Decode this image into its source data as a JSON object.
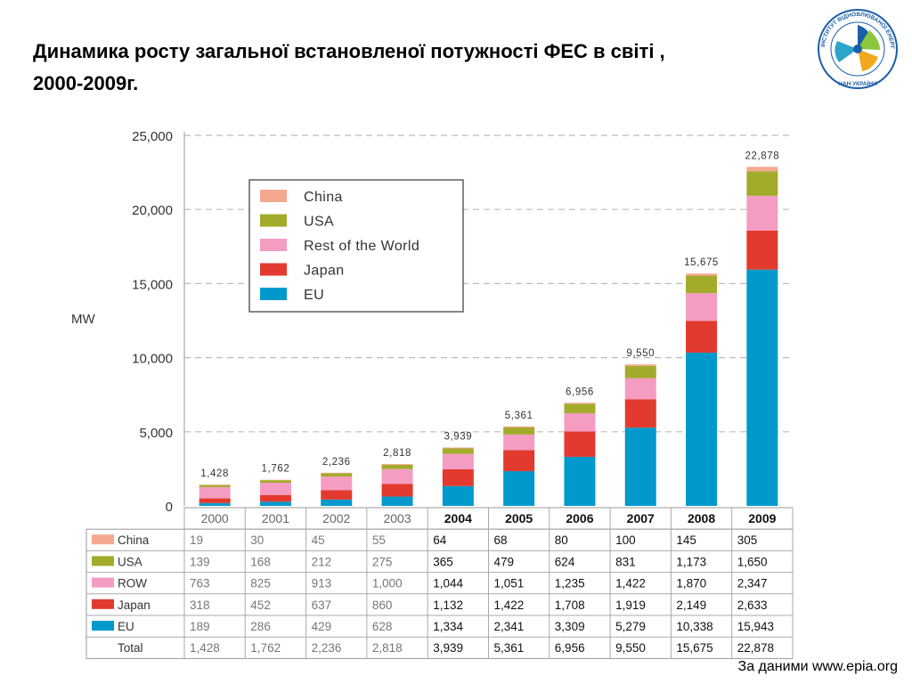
{
  "slide": {
    "title": "Динамика росту загальної встановленої потужності ФЕС  в світі , 2000-2009г.",
    "source": "За даними www.epia.org",
    "logo": {
      "icon": "institute-logo-icon",
      "arc_text": "ІНСТИТУТ ВІДНОВЛЮВАНОЇ ЕНЕРГЕТИКИ",
      "bottom_text": "НАН УКРАЇНИ"
    }
  },
  "colors": {
    "China": "#f4a98f",
    "USA": "#a2ab2a",
    "ROW": "#f59cc2",
    "Japan": "#e23a2e",
    "EU": "#0099cc"
  },
  "chart_data": {
    "type": "bar",
    "stacked": true,
    "categories": [
      "2000",
      "2001",
      "2002",
      "2003",
      "2004",
      "2005",
      "2006",
      "2007",
      "2008",
      "2009"
    ],
    "series": [
      {
        "name": "EU",
        "key": "EU",
        "values": [
          189,
          286,
          429,
          628,
          1334,
          2341,
          3309,
          5279,
          10338,
          15943
        ],
        "labels": [
          "189",
          "286",
          "429",
          "628",
          "1,334",
          "2,341",
          "3,309",
          "5,279",
          "10,338",
          "15,943"
        ]
      },
      {
        "name": "Japan",
        "key": "Japan",
        "values": [
          318,
          452,
          637,
          860,
          1132,
          1422,
          1708,
          1919,
          2149,
          2633
        ],
        "labels": [
          "318",
          "452",
          "637",
          "860",
          "1,132",
          "1,422",
          "1,708",
          "1,919",
          "2,149",
          "2,633"
        ]
      },
      {
        "name": "ROW",
        "legend_name": "Rest of the World",
        "key": "ROW",
        "values": [
          763,
          825,
          913,
          1000,
          1044,
          1051,
          1235,
          1422,
          1870,
          2347
        ],
        "labels": [
          "763",
          "825",
          "913",
          "1,000",
          "1,044",
          "1,051",
          "1,235",
          "1,422",
          "1,870",
          "2,347"
        ]
      },
      {
        "name": "USA",
        "key": "USA",
        "values": [
          139,
          168,
          212,
          275,
          365,
          479,
          624,
          831,
          1173,
          1650
        ],
        "labels": [
          "139",
          "168",
          "212",
          "275",
          "365",
          "479",
          "624",
          "831",
          "1,173",
          "1,650"
        ]
      },
      {
        "name": "China",
        "key": "China",
        "values": [
          19,
          30,
          45,
          55,
          64,
          68,
          80,
          100,
          145,
          305
        ],
        "labels": [
          "19",
          "30",
          "45",
          "55",
          "64",
          "68",
          "80",
          "100",
          "145",
          "305"
        ]
      }
    ],
    "totals": [
      1428,
      1762,
      2236,
      2818,
      3939,
      5361,
      6956,
      9550,
      15675,
      22878
    ],
    "total_labels": [
      "1,428",
      "1,762",
      "2,236",
      "2,818",
      "3,939",
      "5,361",
      "6,956",
      "9,550",
      "15,675",
      "22,878"
    ],
    "table_total_label": "Total",
    "table_row_order": [
      "China",
      "USA",
      "ROW",
      "Japan",
      "EU"
    ],
    "ylabel": "MW",
    "ylim": [
      0,
      25000
    ],
    "yticks": [
      0,
      5000,
      10000,
      15000,
      20000,
      25000
    ],
    "ytick_labels": [
      "0",
      "5,000",
      "10,000",
      "15,000",
      "20,000",
      "25,000"
    ],
    "grid": "dashed horizontal",
    "legend": {
      "placement": "top-left",
      "order": [
        "China",
        "USA",
        "ROW",
        "Japan",
        "EU"
      ]
    }
  }
}
